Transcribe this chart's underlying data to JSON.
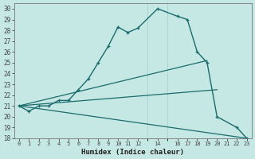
{
  "xlabel": "Humidex (Indice chaleur)",
  "xlim": [
    -0.5,
    23.5
  ],
  "ylim": [
    18,
    30.5
  ],
  "yticks": [
    18,
    19,
    20,
    21,
    22,
    23,
    24,
    25,
    26,
    27,
    28,
    29,
    30
  ],
  "xtick_positions": [
    0,
    1,
    2,
    3,
    4,
    5,
    6,
    7,
    8,
    9,
    10,
    11,
    12,
    14,
    16,
    17,
    18,
    19,
    20,
    21,
    22,
    23
  ],
  "xtick_labels": [
    "0",
    "1",
    "2",
    "3",
    "4",
    "5",
    "6",
    "7",
    "8",
    "9",
    "10",
    "11",
    "12",
    "14",
    "16",
    "17",
    "18",
    "19",
    "20",
    "21",
    "22",
    "23"
  ],
  "bg_color": "#c5e8e5",
  "grid_color": "#9fcfcb",
  "line_color": "#1a6b6b",
  "curve_x": [
    0,
    1,
    2,
    3,
    4,
    5,
    6,
    7,
    8,
    9,
    10,
    11,
    12,
    14,
    16,
    17,
    18,
    19,
    20,
    22,
    23
  ],
  "curve_y": [
    21.0,
    20.5,
    21.0,
    21.0,
    21.5,
    21.5,
    22.5,
    23.5,
    25.0,
    26.5,
    28.3,
    27.8,
    28.2,
    30.0,
    29.3,
    29.0,
    26.0,
    25.0,
    20.0,
    19.0,
    18.0
  ],
  "line1_x": [
    0,
    19
  ],
  "line1_y": [
    21.0,
    25.2
  ],
  "line2_x": [
    0,
    20
  ],
  "line2_y": [
    21.0,
    22.5
  ],
  "line3_x": [
    0,
    23
  ],
  "line3_y": [
    21.0,
    18.0
  ]
}
